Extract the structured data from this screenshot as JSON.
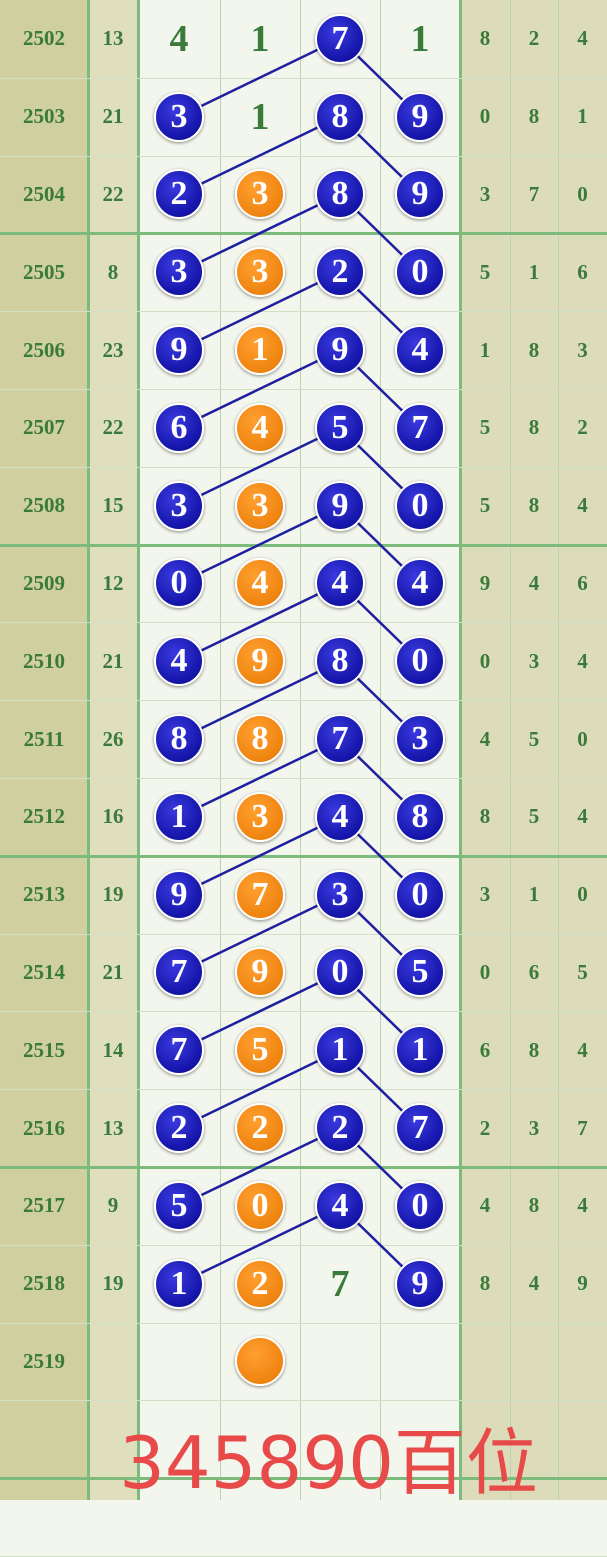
{
  "colors": {
    "blue_ball": "#1414a8",
    "orange_ball": "#ef8410",
    "text_green": "#3a7a3a",
    "footer_red": "#e84a4a",
    "link_line": "#1f1fa0"
  },
  "chart_data": {
    "type": "table",
    "rows": [
      {
        "period": "2502",
        "sum": "13",
        "cells": [
          {
            "v": "4",
            "t": "plain"
          },
          {
            "v": "1",
            "t": "plain"
          },
          {
            "v": "7",
            "t": "blue"
          },
          {
            "v": "1",
            "t": "plain"
          }
        ],
        "tail": [
          "8",
          "2",
          "4"
        ]
      },
      {
        "period": "2503",
        "sum": "21",
        "cells": [
          {
            "v": "3",
            "t": "blue"
          },
          {
            "v": "1",
            "t": "plain"
          },
          {
            "v": "8",
            "t": "blue"
          },
          {
            "v": "9",
            "t": "blue"
          }
        ],
        "tail": [
          "0",
          "8",
          "1"
        ]
      },
      {
        "period": "2504",
        "sum": "22",
        "cells": [
          {
            "v": "2",
            "t": "blue"
          },
          {
            "v": "3",
            "t": "orange"
          },
          {
            "v": "8",
            "t": "blue"
          },
          {
            "v": "9",
            "t": "blue"
          }
        ],
        "tail": [
          "3",
          "7",
          "0"
        ]
      },
      {
        "period": "2505",
        "sum": "8",
        "cells": [
          {
            "v": "3",
            "t": "blue"
          },
          {
            "v": "3",
            "t": "orange"
          },
          {
            "v": "2",
            "t": "blue"
          },
          {
            "v": "0",
            "t": "blue"
          }
        ],
        "tail": [
          "5",
          "1",
          "6"
        ]
      },
      {
        "period": "2506",
        "sum": "23",
        "cells": [
          {
            "v": "9",
            "t": "blue"
          },
          {
            "v": "1",
            "t": "orange"
          },
          {
            "v": "9",
            "t": "blue"
          },
          {
            "v": "4",
            "t": "blue"
          }
        ],
        "tail": [
          "1",
          "8",
          "3"
        ]
      },
      {
        "period": "2507",
        "sum": "22",
        "cells": [
          {
            "v": "6",
            "t": "blue"
          },
          {
            "v": "4",
            "t": "orange"
          },
          {
            "v": "5",
            "t": "blue"
          },
          {
            "v": "7",
            "t": "blue"
          }
        ],
        "tail": [
          "5",
          "8",
          "2"
        ]
      },
      {
        "period": "2508",
        "sum": "15",
        "cells": [
          {
            "v": "3",
            "t": "blue"
          },
          {
            "v": "3",
            "t": "orange"
          },
          {
            "v": "9",
            "t": "blue"
          },
          {
            "v": "0",
            "t": "blue"
          }
        ],
        "tail": [
          "5",
          "8",
          "4"
        ]
      },
      {
        "period": "2509",
        "sum": "12",
        "cells": [
          {
            "v": "0",
            "t": "blue"
          },
          {
            "v": "4",
            "t": "orange"
          },
          {
            "v": "4",
            "t": "blue"
          },
          {
            "v": "4",
            "t": "blue"
          }
        ],
        "tail": [
          "9",
          "4",
          "6"
        ]
      },
      {
        "period": "2510",
        "sum": "21",
        "cells": [
          {
            "v": "4",
            "t": "blue"
          },
          {
            "v": "9",
            "t": "orange"
          },
          {
            "v": "8",
            "t": "blue"
          },
          {
            "v": "0",
            "t": "blue"
          }
        ],
        "tail": [
          "0",
          "3",
          "4"
        ]
      },
      {
        "period": "2511",
        "sum": "26",
        "cells": [
          {
            "v": "8",
            "t": "blue"
          },
          {
            "v": "8",
            "t": "orange"
          },
          {
            "v": "7",
            "t": "blue"
          },
          {
            "v": "3",
            "t": "blue"
          }
        ],
        "tail": [
          "4",
          "5",
          "0"
        ]
      },
      {
        "period": "2512",
        "sum": "16",
        "cells": [
          {
            "v": "1",
            "t": "blue"
          },
          {
            "v": "3",
            "t": "orange"
          },
          {
            "v": "4",
            "t": "blue"
          },
          {
            "v": "8",
            "t": "blue"
          }
        ],
        "tail": [
          "8",
          "5",
          "4"
        ]
      },
      {
        "period": "2513",
        "sum": "19",
        "cells": [
          {
            "v": "9",
            "t": "blue"
          },
          {
            "v": "7",
            "t": "orange"
          },
          {
            "v": "3",
            "t": "blue"
          },
          {
            "v": "0",
            "t": "blue"
          }
        ],
        "tail": [
          "3",
          "1",
          "0"
        ]
      },
      {
        "period": "2514",
        "sum": "21",
        "cells": [
          {
            "v": "7",
            "t": "blue"
          },
          {
            "v": "9",
            "t": "orange"
          },
          {
            "v": "0",
            "t": "blue"
          },
          {
            "v": "5",
            "t": "blue"
          }
        ],
        "tail": [
          "0",
          "6",
          "5"
        ]
      },
      {
        "period": "2515",
        "sum": "14",
        "cells": [
          {
            "v": "7",
            "t": "blue"
          },
          {
            "v": "5",
            "t": "orange"
          },
          {
            "v": "1",
            "t": "blue"
          },
          {
            "v": "1",
            "t": "blue"
          }
        ],
        "tail": [
          "6",
          "8",
          "4"
        ]
      },
      {
        "period": "2516",
        "sum": "13",
        "cells": [
          {
            "v": "2",
            "t": "blue"
          },
          {
            "v": "2",
            "t": "orange"
          },
          {
            "v": "2",
            "t": "blue"
          },
          {
            "v": "7",
            "t": "blue"
          }
        ],
        "tail": [
          "2",
          "3",
          "7"
        ]
      },
      {
        "period": "2517",
        "sum": "9",
        "cells": [
          {
            "v": "5",
            "t": "blue"
          },
          {
            "v": "0",
            "t": "orange"
          },
          {
            "v": "4",
            "t": "blue"
          },
          {
            "v": "0",
            "t": "blue"
          }
        ],
        "tail": [
          "4",
          "8",
          "4"
        ]
      },
      {
        "period": "2518",
        "sum": "19",
        "cells": [
          {
            "v": "1",
            "t": "blue"
          },
          {
            "v": "2",
            "t": "orange"
          },
          {
            "v": "7",
            "t": "plain"
          },
          {
            "v": "9",
            "t": "blue"
          }
        ],
        "tail": [
          "8",
          "4",
          "9"
        ]
      },
      {
        "period": "2519",
        "sum": "",
        "cells": [
          {
            "v": "",
            "t": "empty"
          },
          {
            "v": "",
            "t": "orange"
          },
          {
            "v": "",
            "t": "empty"
          },
          {
            "v": "",
            "t": "empty"
          }
        ],
        "tail": [
          "",
          "",
          ""
        ]
      }
    ]
  },
  "footer": {
    "text": "345890百位"
  }
}
